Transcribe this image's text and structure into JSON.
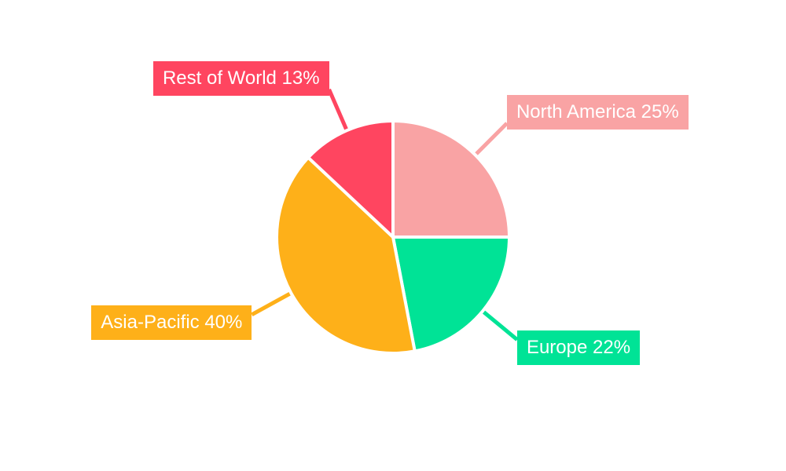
{
  "chart_data": {
    "type": "pie",
    "title": "",
    "legend": "none",
    "background": "#ffffff",
    "separator_color": "#ffffff",
    "label_text_color": "#ffffff",
    "start_angle_deg": 0,
    "direction": "clockwise",
    "unit": "%",
    "slices": [
      {
        "label": "North America",
        "value": 25,
        "color": "#F9A3A4",
        "display": "North America 25%"
      },
      {
        "label": "Europe",
        "value": 22,
        "color": "#00E396",
        "display": "Europe 22%"
      },
      {
        "label": "Asia-Pacific",
        "value": 40,
        "color": "#FEB019",
        "display": "Asia-Pacific 40%"
      },
      {
        "label": "Rest of World",
        "value": 13,
        "color": "#FF4560",
        "display": "Rest of World 13%"
      }
    ]
  }
}
